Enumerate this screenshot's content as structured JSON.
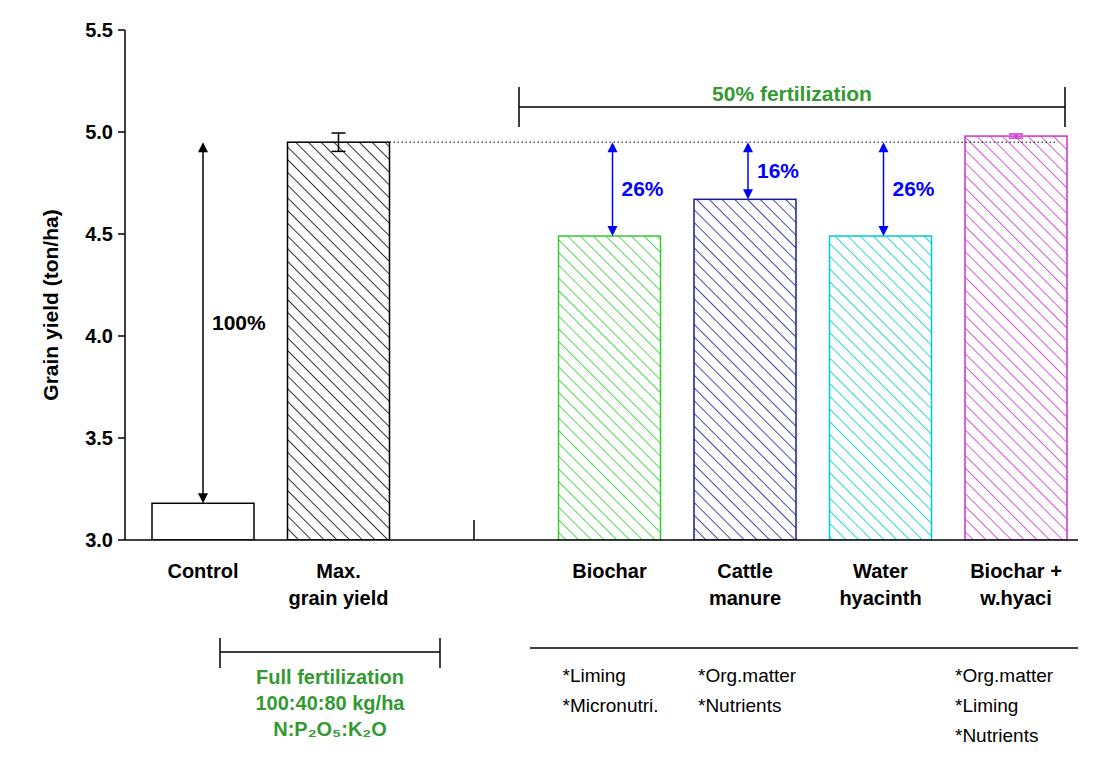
{
  "chart_data": {
    "type": "bar",
    "ylabel": "Grain yield (ton/ha)",
    "categories": [
      "Control",
      "Max.\ngrain yield",
      null,
      "Biochar",
      "Cattle\nmanure",
      "Water\nhyacinth",
      "Biochar +\nw.hyaci"
    ],
    "values": [
      3.18,
      4.95,
      null,
      4.49,
      4.67,
      4.49,
      4.98
    ],
    "errors": [
      null,
      0.045,
      null,
      null,
      null,
      null,
      0.01
    ],
    "colors": [
      "#ffffff",
      "#000000",
      null,
      "#33cc33",
      "#1a1a99",
      "#00cccc",
      "#cc33cc"
    ],
    "ylim": [
      3.0,
      5.5
    ],
    "yticks": [
      {
        "value": 3,
        "label": "3.0"
      },
      3.5,
      {
        "value": 4,
        "label": "4.0"
      },
      4.5,
      {
        "value": 5,
        "label": "5.0"
      },
      5.5
    ],
    "reference_value": 4.95,
    "annotations": [
      {
        "text": "100%",
        "category": "Control",
        "color": "#000000"
      },
      {
        "text": "26%",
        "category": "Biochar",
        "color": "#0000ff"
      },
      {
        "text": "16%",
        "category": "Cattle\nmanure",
        "color": "#0000ff"
      },
      {
        "text": "26%",
        "category": "Water\nhyacinth",
        "color": "#0000ff"
      }
    ],
    "top_bracket_label": "50% fertilization",
    "bottom_bracket_label": "Full fertilization\n100:40:80 kg/ha\nN:P₂O₅:K₂O",
    "notes": [
      null,
      null,
      null,
      [
        "*Liming",
        "*Micronutri."
      ],
      [
        "*Org.matter",
        "*Nutrients"
      ],
      null,
      [
        "*Org.matter",
        "*Liming",
        "*Nutrients"
      ]
    ]
  }
}
